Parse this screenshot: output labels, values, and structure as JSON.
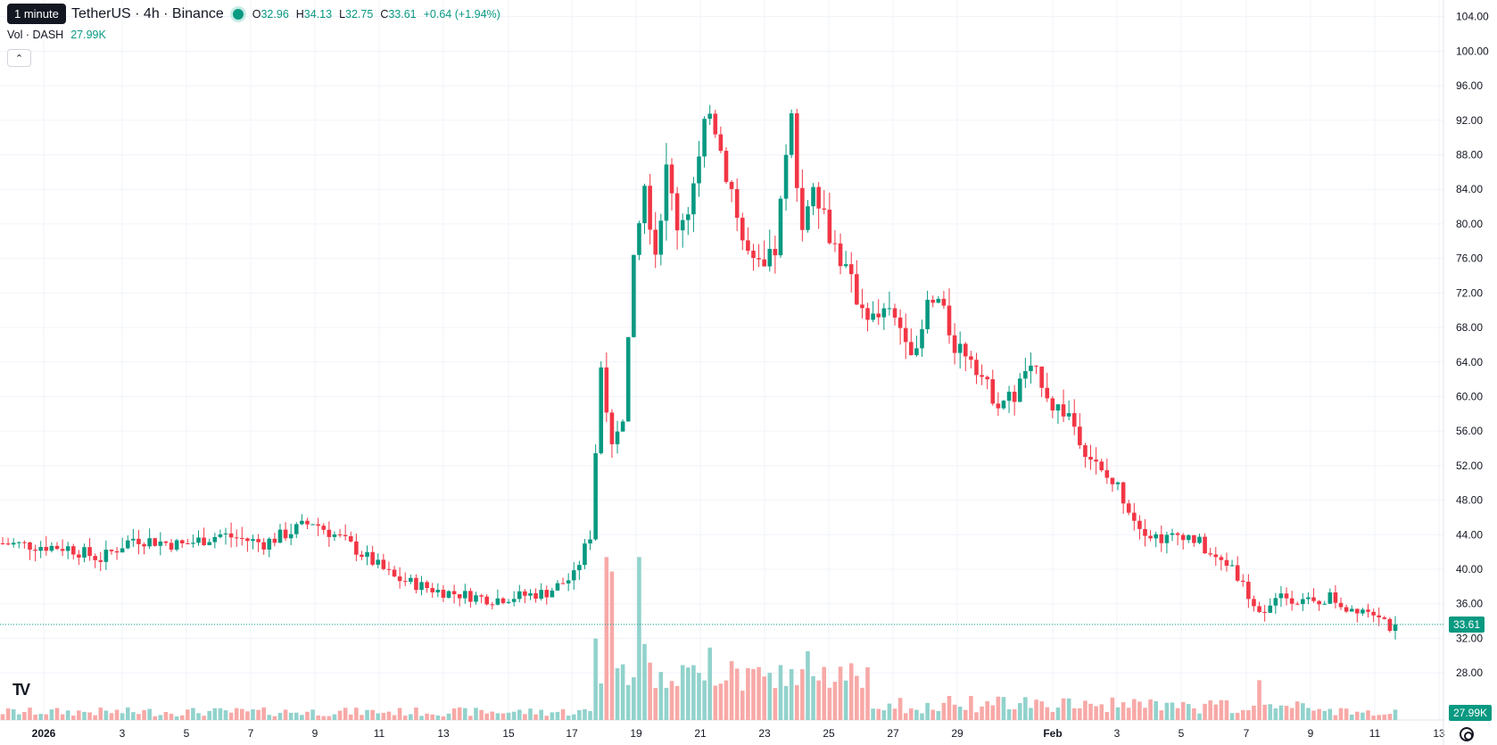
{
  "tooltip": "1 minute",
  "legend": {
    "symbol": "TetherUS · 4h · Binance",
    "o_label": "O",
    "o_value": "32.96",
    "h_label": "H",
    "h_value": "34.13",
    "l_label": "L",
    "l_value": "32.75",
    "c_label": "C",
    "c_value": "33.61",
    "change": "+0.64 (+1.94%)"
  },
  "volume_legend": {
    "label": "Vol · DASH",
    "value": "27.99K"
  },
  "collapse_icon": "chevron-up-icon",
  "logo_icon": "tradingview-logo",
  "price_tag": "33.61",
  "volume_tag": "27.99K",
  "colors": {
    "up": "#089981",
    "down": "#f23645",
    "up_vol": "#92d2cc",
    "down_vol": "#f7a9a7",
    "grid": "#f0f3fa"
  },
  "chart_data": {
    "type": "candlestick",
    "x_labels": [
      "2026",
      "3",
      "5",
      "7",
      "9",
      "11",
      "13",
      "15",
      "17",
      "19",
      "21",
      "23",
      "25",
      "27",
      "29",
      "Feb",
      "3",
      "5",
      "7",
      "9",
      "11",
      "13"
    ],
    "y_ticks": [
      "104.00",
      "100.00",
      "96.00",
      "92.00",
      "88.00",
      "84.00",
      "80.00",
      "76.00",
      "72.00",
      "68.00",
      "64.00",
      "60.00",
      "56.00",
      "52.00",
      "48.00",
      "44.00",
      "40.00",
      "36.00",
      "32.00",
      "28.00"
    ],
    "ylim": [
      24.5,
      105
    ],
    "last_price": 33.61,
    "close_path": [
      [
        0,
        43.0
      ],
      [
        12,
        42.5
      ],
      [
        18,
        41.2
      ],
      [
        24,
        43.6
      ],
      [
        33,
        42.8
      ],
      [
        40,
        44.0
      ],
      [
        48,
        43.0
      ],
      [
        57,
        45.5
      ],
      [
        63,
        43.2
      ],
      [
        72,
        39.0
      ],
      [
        80,
        37.5
      ],
      [
        90,
        36.5
      ],
      [
        100,
        37.3
      ],
      [
        105,
        39.2
      ],
      [
        108,
        44.0
      ],
      [
        110,
        63.5
      ],
      [
        112,
        55.0
      ],
      [
        114,
        58.0
      ],
      [
        116,
        75.0
      ],
      [
        118,
        84.5
      ],
      [
        120,
        77.0
      ],
      [
        122,
        86.0
      ],
      [
        124,
        80.0
      ],
      [
        126,
        82.0
      ],
      [
        128,
        87.0
      ],
      [
        130,
        94.0
      ],
      [
        132,
        88.5
      ],
      [
        134,
        84.0
      ],
      [
        136,
        78.0
      ],
      [
        138,
        75.0
      ],
      [
        140,
        74.5
      ],
      [
        142,
        77.0
      ],
      [
        145,
        92.0
      ],
      [
        147,
        79.5
      ],
      [
        149,
        85.5
      ],
      [
        152,
        79.0
      ],
      [
        155,
        74.5
      ],
      [
        157,
        71.5
      ],
      [
        160,
        69.0
      ],
      [
        163,
        69.5
      ],
      [
        166,
        67.5
      ],
      [
        168,
        64.5
      ],
      [
        170,
        70.5
      ],
      [
        172,
        71.0
      ],
      [
        175,
        66.0
      ],
      [
        178,
        65.0
      ],
      [
        181,
        61.0
      ],
      [
        183,
        59.5
      ],
      [
        186,
        60.0
      ],
      [
        188,
        63.0
      ],
      [
        191,
        62.0
      ],
      [
        193,
        59.0
      ],
      [
        196,
        58.0
      ],
      [
        199,
        54.0
      ],
      [
        202,
        51.0
      ],
      [
        205,
        49.5
      ],
      [
        208,
        46.0
      ],
      [
        211,
        44.0
      ],
      [
        214,
        43.5
      ],
      [
        217,
        44.2
      ],
      [
        220,
        43.0
      ],
      [
        223,
        41.0
      ],
      [
        226,
        40.5
      ],
      [
        229,
        37.0
      ],
      [
        231,
        34.5
      ],
      [
        233,
        35.5
      ],
      [
        235,
        37.0
      ],
      [
        238,
        36.5
      ],
      [
        241,
        36.0
      ],
      [
        244,
        36.8
      ],
      [
        247,
        35.5
      ],
      [
        250,
        35.5
      ],
      [
        253,
        35.0
      ],
      [
        255,
        33.3
      ],
      [
        256,
        33.6
      ]
    ],
    "volume_peaks": [
      [
        109,
        0.45
      ],
      [
        111,
        0.9
      ],
      [
        112,
        0.82
      ],
      [
        117,
        0.9
      ],
      [
        118,
        0.42
      ],
      [
        130,
        0.4
      ],
      [
        148,
        0.38
      ],
      [
        231,
        0.22
      ]
    ]
  }
}
